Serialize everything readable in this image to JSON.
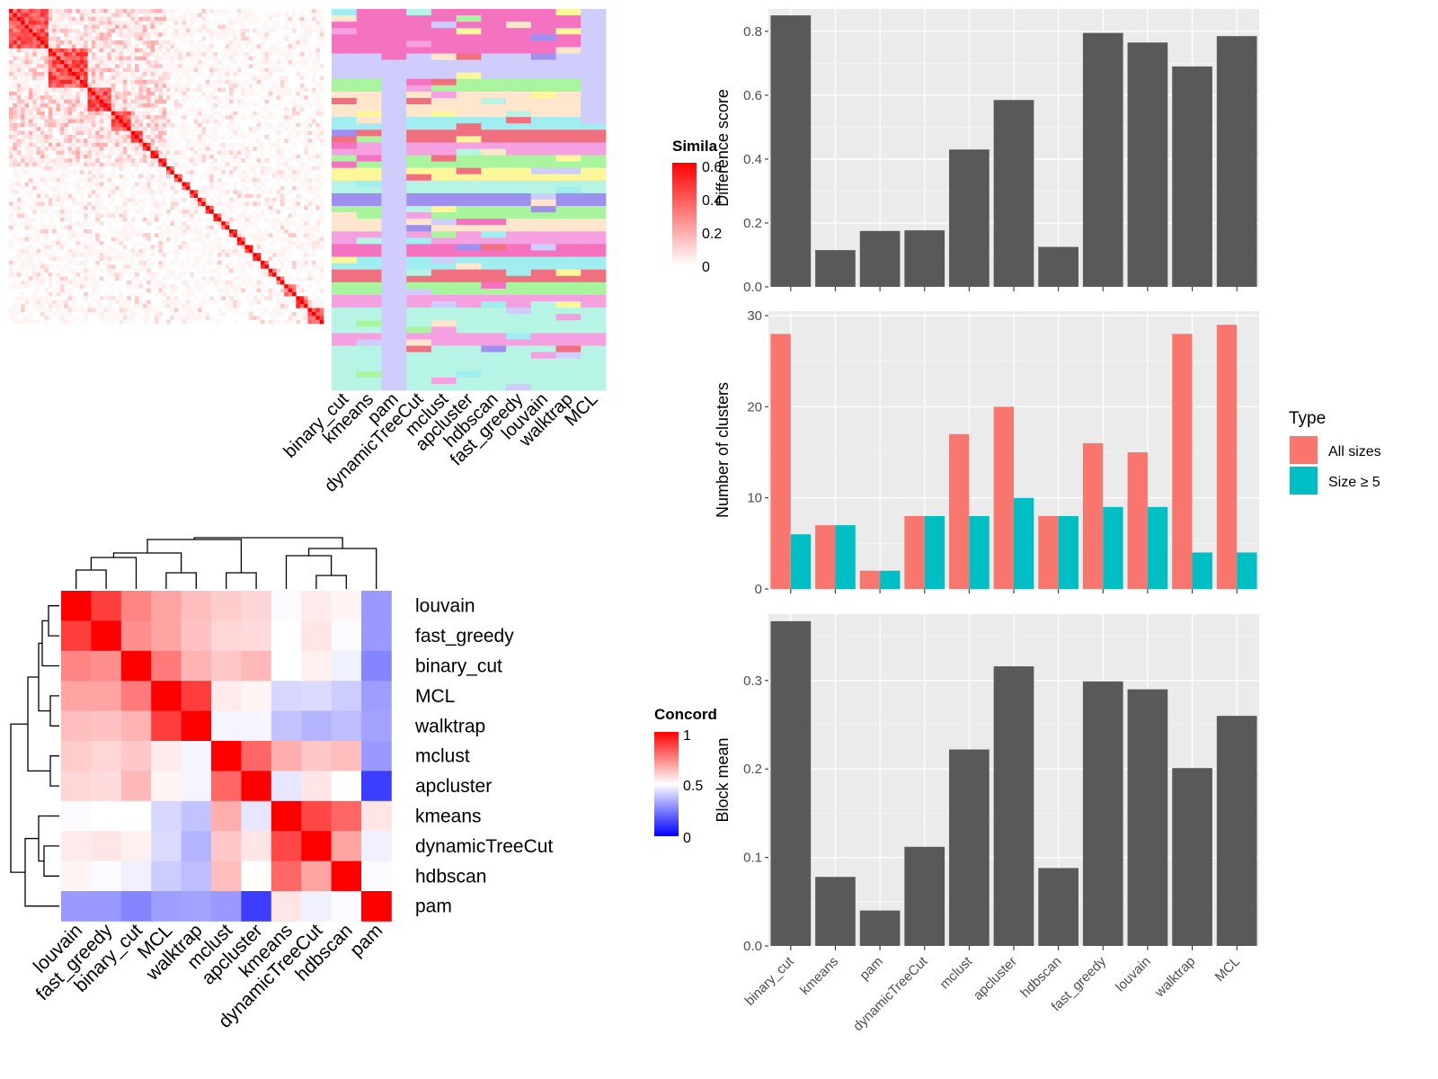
{
  "similarity_legend": {
    "title": "Simila",
    "ticks": [
      "0.6",
      "0.4",
      "0.2",
      "0"
    ]
  },
  "concordance_legend": {
    "title": "Concord",
    "ticks": [
      "1",
      "0.5",
      "0"
    ]
  },
  "methods_top": [
    "binary_cut",
    "kmeans",
    "pam",
    "dynamicTreeCut",
    "mclust",
    "apcluster",
    "hdbscan",
    "fast_greedy",
    "louvain",
    "walktrap",
    "MCL"
  ],
  "partition_colors": [
    "#f572c0",
    "#cfcdfb",
    "#a8f59e",
    "#ffe6cd",
    "#a0eef0",
    "#f07080",
    "#f5a0e0",
    "#fdf79a",
    "#b6f5e5",
    "#9f90f0"
  ],
  "concordance_labels": [
    "louvain",
    "fast_greedy",
    "binary_cut",
    "MCL",
    "walktrap",
    "mclust",
    "apcluster",
    "kmeans",
    "dynamicTreeCut",
    "hdbscan",
    "pam"
  ],
  "concordance_colors": {
    "high": "#ff0000",
    "mid": "#ffffff",
    "low": "#0000ff"
  },
  "chart_data": [
    {
      "type": "heatmap",
      "title": "Concordance",
      "rows": [
        "louvain",
        "fast_greedy",
        "binary_cut",
        "MCL",
        "walktrap",
        "mclust",
        "apcluster",
        "kmeans",
        "dynamicTreeCut",
        "hdbscan",
        "pam"
      ],
      "cols": [
        "louvain",
        "fast_greedy",
        "binary_cut",
        "MCL",
        "walktrap",
        "mclust",
        "apcluster",
        "kmeans",
        "dynamicTreeCut",
        "hdbscan",
        "pam"
      ],
      "range": [
        0,
        1
      ],
      "values": [
        [
          1.0,
          0.88,
          0.74,
          0.68,
          0.63,
          0.6,
          0.58,
          0.49,
          0.54,
          0.52,
          0.3
        ],
        [
          0.88,
          1.0,
          0.72,
          0.68,
          0.62,
          0.58,
          0.57,
          0.5,
          0.55,
          0.49,
          0.3
        ],
        [
          0.74,
          0.72,
          1.0,
          0.76,
          0.65,
          0.61,
          0.64,
          0.5,
          0.53,
          0.47,
          0.26
        ],
        [
          0.68,
          0.68,
          0.76,
          1.0,
          0.88,
          0.54,
          0.52,
          0.42,
          0.43,
          0.4,
          0.31
        ],
        [
          0.63,
          0.62,
          0.65,
          0.88,
          1.0,
          0.48,
          0.48,
          0.38,
          0.35,
          0.37,
          0.32
        ],
        [
          0.6,
          0.58,
          0.61,
          0.54,
          0.48,
          1.0,
          0.8,
          0.66,
          0.61,
          0.63,
          0.3
        ],
        [
          0.58,
          0.57,
          0.64,
          0.52,
          0.48,
          0.8,
          1.0,
          0.45,
          0.55,
          0.5,
          0.12
        ],
        [
          0.49,
          0.5,
          0.5,
          0.42,
          0.38,
          0.66,
          0.45,
          1.0,
          0.86,
          0.8,
          0.55
        ],
        [
          0.54,
          0.55,
          0.53,
          0.43,
          0.35,
          0.61,
          0.55,
          0.86,
          1.0,
          0.68,
          0.47
        ],
        [
          0.52,
          0.49,
          0.47,
          0.4,
          0.37,
          0.63,
          0.5,
          0.8,
          0.68,
          1.0,
          0.49
        ],
        [
          0.3,
          0.3,
          0.26,
          0.31,
          0.32,
          0.3,
          0.12,
          0.55,
          0.47,
          0.49,
          1.0
        ]
      ]
    },
    {
      "type": "bar",
      "categories": [
        "binary_cut",
        "kmeans",
        "pam",
        "dynamicTreeCut",
        "mclust",
        "apcluster",
        "hdbscan",
        "fast_greedy",
        "louvain",
        "walktrap",
        "MCL"
      ],
      "values": [
        0.85,
        0.115,
        0.175,
        0.177,
        0.43,
        0.585,
        0.125,
        0.795,
        0.765,
        0.69,
        0.785
      ],
      "ylabel": "Difference score",
      "ylim": [
        0,
        0.87
      ],
      "yticks": [
        "0.0",
        "0.2",
        "0.4",
        "0.6",
        "0.8"
      ],
      "grid": true
    },
    {
      "type": "bar",
      "categories": [
        "binary_cut",
        "kmeans",
        "pam",
        "dynamicTreeCut",
        "mclust",
        "apcluster",
        "hdbscan",
        "fast_greedy",
        "louvain",
        "walktrap",
        "MCL"
      ],
      "series": [
        {
          "name": "All sizes",
          "color": "#f8766d",
          "values": [
            28,
            7,
            2,
            8,
            17,
            20,
            8,
            16,
            15,
            28,
            29
          ]
        },
        {
          "name": "Size ≥ 5",
          "color": "#00bfc4",
          "values": [
            6,
            7,
            2,
            8,
            8,
            10,
            8,
            9,
            9,
            4,
            4
          ]
        }
      ],
      "ylabel": "Number of clusters",
      "ylim": [
        0,
        30.5
      ],
      "yticks": [
        "0",
        "10",
        "20",
        "30"
      ],
      "legend_title": "Type",
      "legend_position": "right",
      "grid": true
    },
    {
      "type": "bar",
      "categories": [
        "binary_cut",
        "kmeans",
        "pam",
        "dynamicTreeCut",
        "mclust",
        "apcluster",
        "hdbscan",
        "fast_greedy",
        "louvain",
        "walktrap",
        "MCL"
      ],
      "values": [
        0.367,
        0.078,
        0.04,
        0.112,
        0.222,
        0.316,
        0.088,
        0.299,
        0.29,
        0.201,
        0.26
      ],
      "ylabel": "Block mean",
      "ylim": [
        0,
        0.375
      ],
      "yticks": [
        "0.0",
        "0.1",
        "0.2",
        "0.3"
      ],
      "grid": true
    }
  ]
}
